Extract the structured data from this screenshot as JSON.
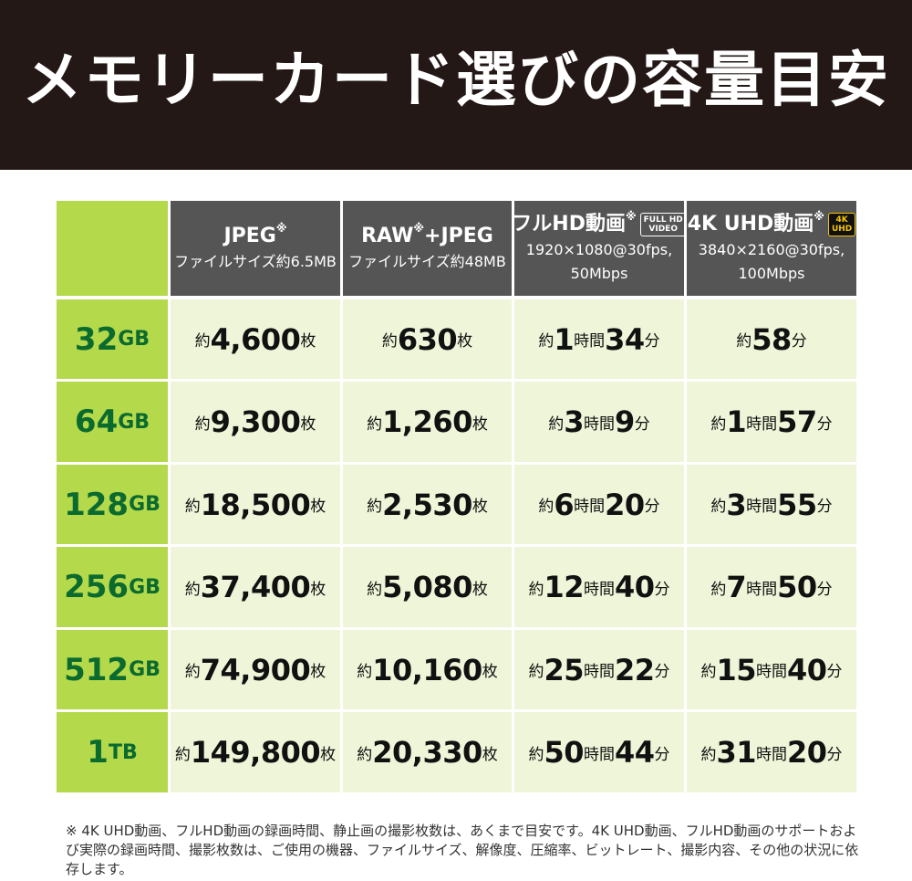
{
  "title": "メモリーカード選びの容量目安",
  "columns": [
    {
      "line1": "JPEG",
      "mark": "※",
      "line2": "ファイルサイズ約6.5MB"
    },
    {
      "line1": "RAW",
      "mark": "※",
      "line1_suffix": "+JPEG",
      "line2": "ファイルサイズ約48MB"
    },
    {
      "line1": "フルHD動画",
      "mark": "※",
      "badge": [
        "FULL HD",
        "VIDEO"
      ],
      "line2": "1920×1080@30fps,",
      "line3": "50Mbps"
    },
    {
      "line1": "4K UHD動画",
      "mark": "※",
      "badge": [
        "4K",
        "UHD"
      ],
      "line2": "3840×2160@30fps,",
      "line3": "100Mbps"
    }
  ],
  "rows": [
    {
      "capacity": "32",
      "unit": "GB",
      "cells": [
        [
          [
            "約",
            "s"
          ],
          [
            "4,600",
            "b"
          ],
          [
            "枚",
            "s"
          ]
        ],
        [
          [
            "約",
            "s"
          ],
          [
            "630",
            "b"
          ],
          [
            "枚",
            "s"
          ]
        ],
        [
          [
            "約",
            "s"
          ],
          [
            "1",
            "b"
          ],
          [
            "時間",
            "s"
          ],
          [
            "34",
            "b"
          ],
          [
            "分",
            "s"
          ]
        ],
        [
          [
            "約",
            "s"
          ],
          [
            "58",
            "b"
          ],
          [
            "分",
            "s"
          ]
        ]
      ]
    },
    {
      "capacity": "64",
      "unit": "GB",
      "cells": [
        [
          [
            "約",
            "s"
          ],
          [
            "9,300",
            "b"
          ],
          [
            "枚",
            "s"
          ]
        ],
        [
          [
            "約",
            "s"
          ],
          [
            "1,260",
            "b"
          ],
          [
            "枚",
            "s"
          ]
        ],
        [
          [
            "約",
            "s"
          ],
          [
            "3",
            "b"
          ],
          [
            "時間",
            "s"
          ],
          [
            "9",
            "b"
          ],
          [
            "分",
            "s"
          ]
        ],
        [
          [
            "約",
            "s"
          ],
          [
            "1",
            "b"
          ],
          [
            "時間",
            "s"
          ],
          [
            "57",
            "b"
          ],
          [
            "分",
            "s"
          ]
        ]
      ]
    },
    {
      "capacity": "128",
      "unit": "GB",
      "cells": [
        [
          [
            "約",
            "s"
          ],
          [
            "18,500",
            "b"
          ],
          [
            "枚",
            "s"
          ]
        ],
        [
          [
            "約",
            "s"
          ],
          [
            "2,530",
            "b"
          ],
          [
            "枚",
            "s"
          ]
        ],
        [
          [
            "約",
            "s"
          ],
          [
            "6",
            "b"
          ],
          [
            "時間",
            "s"
          ],
          [
            "20",
            "b"
          ],
          [
            "分",
            "s"
          ]
        ],
        [
          [
            "約",
            "s"
          ],
          [
            "3",
            "b"
          ],
          [
            "時間",
            "s"
          ],
          [
            "55",
            "b"
          ],
          [
            "分",
            "s"
          ]
        ]
      ]
    },
    {
      "capacity": "256",
      "unit": "GB",
      "cells": [
        [
          [
            "約",
            "s"
          ],
          [
            "37,400",
            "b"
          ],
          [
            "枚",
            "s"
          ]
        ],
        [
          [
            "約",
            "s"
          ],
          [
            "5,080",
            "b"
          ],
          [
            "枚",
            "s"
          ]
        ],
        [
          [
            "約",
            "s"
          ],
          [
            "12",
            "b"
          ],
          [
            "時間",
            "s"
          ],
          [
            "40",
            "b"
          ],
          [
            "分",
            "s"
          ]
        ],
        [
          [
            "約",
            "s"
          ],
          [
            "7",
            "b"
          ],
          [
            "時間",
            "s"
          ],
          [
            "50",
            "b"
          ],
          [
            "分",
            "s"
          ]
        ]
      ]
    },
    {
      "capacity": "512",
      "unit": "GB",
      "cells": [
        [
          [
            "約",
            "s"
          ],
          [
            "74,900",
            "b"
          ],
          [
            "枚",
            "s"
          ]
        ],
        [
          [
            "約",
            "s"
          ],
          [
            "10,160",
            "b"
          ],
          [
            "枚",
            "s"
          ]
        ],
        [
          [
            "約",
            "s"
          ],
          [
            "25",
            "b"
          ],
          [
            "時間",
            "s"
          ],
          [
            "22",
            "b"
          ],
          [
            "分",
            "s"
          ]
        ],
        [
          [
            "約",
            "s"
          ],
          [
            "15",
            "b"
          ],
          [
            "時間",
            "s"
          ],
          [
            "40",
            "b"
          ],
          [
            "分",
            "s"
          ]
        ]
      ]
    },
    {
      "capacity": "1",
      "unit": "TB",
      "cells": [
        [
          [
            "約",
            "s"
          ],
          [
            "149,800",
            "b"
          ],
          [
            "枚",
            "s"
          ]
        ],
        [
          [
            "約",
            "s"
          ],
          [
            "20,330",
            "b"
          ],
          [
            "枚",
            "s"
          ]
        ],
        [
          [
            "約",
            "s"
          ],
          [
            "50",
            "b"
          ],
          [
            "時間",
            "s"
          ],
          [
            "44",
            "b"
          ],
          [
            "分",
            "s"
          ]
        ],
        [
          [
            "約",
            "s"
          ],
          [
            "31",
            "b"
          ],
          [
            "時間",
            "s"
          ],
          [
            "20",
            "b"
          ],
          [
            "分",
            "s"
          ]
        ]
      ]
    }
  ],
  "footnote": "※ 4K UHD動画、フルHD動画の録画時間、静止画の撮影枚数は、あくまで目安です。4K UHD動画、フルHD動画のサポートおよび実際の録画時間、撮影枚数は、ご使用の機器、ファイルサイズ、解像度、圧縮率、ビットレート、撮影内容、その他の状況に依存します。"
}
